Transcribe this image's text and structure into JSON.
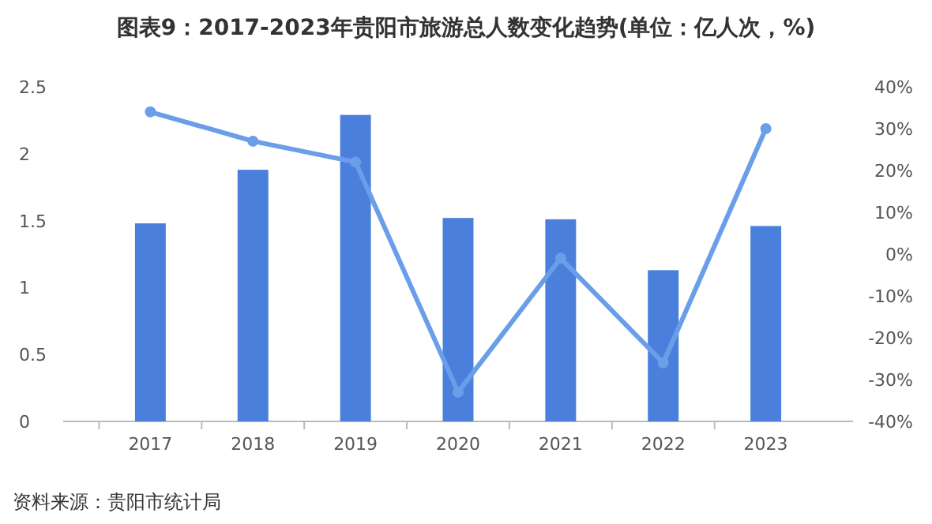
{
  "chart_data": {
    "type": "bar",
    "title": "图表9：2017-2023年贵阳市旅游总人数变化趋势(单位：亿人次，%)",
    "categories": [
      "2017",
      "2018",
      "2019",
      "2020",
      "2021",
      "2022",
      "2023"
    ],
    "series": [
      {
        "color": "#4a80dc",
        "values": [
          1.48,
          1.88,
          2.29,
          1.52,
          1.51,
          1.13,
          1.46
        ]
      },
      {
        "type": "line",
        "axis": "y2",
        "color": "#6a9ee8",
        "marker": "circle",
        "values": [
          34,
          27,
          22,
          -33,
          -1,
          -26,
          30
        ]
      }
    ],
    "ylim": [
      0,
      2.5
    ],
    "yticks": [
      0,
      {
        "value": 0.5,
        "label": "0.5"
      },
      1,
      {
        "value": 1.5,
        "label": "1.5"
      },
      2,
      {
        "value": 2.5,
        "label": "2.5"
      }
    ],
    "y2lim": [
      -40,
      40
    ],
    "y2ticks": [
      {
        "value": -40,
        "label": "-40%"
      },
      {
        "value": -30,
        "label": "-30%"
      },
      {
        "value": -20,
        "label": "-20%"
      },
      {
        "value": -10,
        "label": "-10%"
      },
      {
        "value": 0,
        "label": "0%"
      },
      {
        "value": 10,
        "label": "10%"
      },
      {
        "value": 20,
        "label": "20%"
      },
      {
        "value": 30,
        "label": "30%"
      },
      {
        "value": 40,
        "label": "40%"
      }
    ],
    "annotations": [
      "资料来源：贵阳市统计局"
    ]
  }
}
